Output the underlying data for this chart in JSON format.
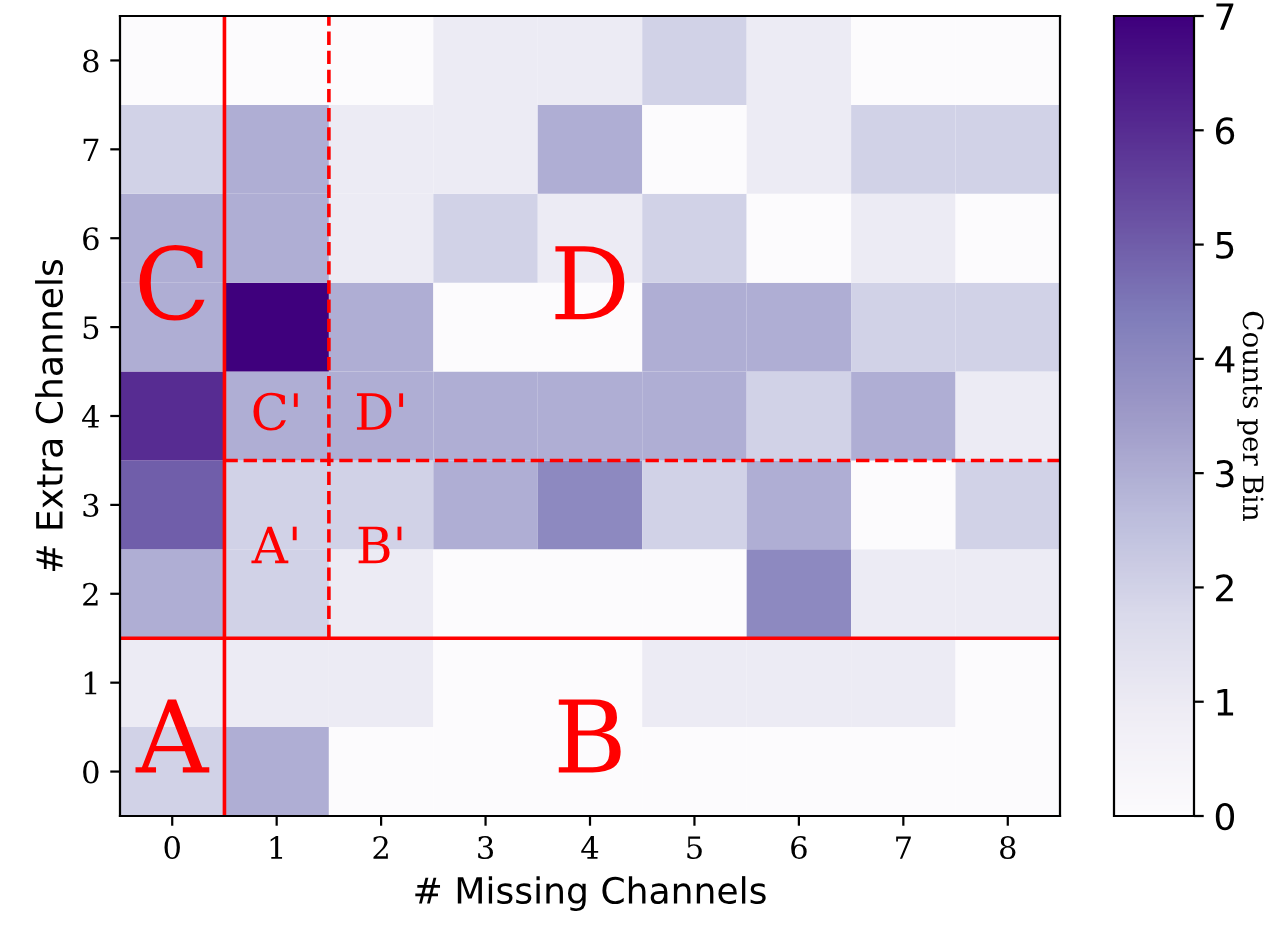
{
  "chart_data": {
    "type": "heatmap",
    "xlabel": "# Missing Channels",
    "ylabel": "# Extra Channels",
    "clabel": "Counts per Bin",
    "categories": [
      "0",
      "1",
      "2",
      "3",
      "4",
      "5",
      "6",
      "7",
      "8"
    ],
    "y_categories": [
      "8",
      "7",
      "6",
      "5",
      "4",
      "3",
      "2",
      "1",
      "0"
    ],
    "cells": [
      [
        0,
        0,
        0,
        1,
        1,
        2,
        1,
        0,
        0
      ],
      [
        2,
        3,
        1,
        1,
        3,
        0,
        1,
        2,
        2
      ],
      [
        3,
        3,
        1,
        2,
        1,
        2,
        0,
        1,
        0
      ],
      [
        3,
        7,
        3,
        0,
        0,
        3,
        3,
        2,
        2
      ],
      [
        6,
        3,
        3,
        3,
        3,
        3,
        2,
        3,
        1
      ],
      [
        5,
        2,
        2,
        3,
        4,
        2,
        3,
        0,
        2
      ],
      [
        3,
        2,
        1,
        0,
        0,
        0,
        4,
        1,
        1
      ],
      [
        1,
        1,
        1,
        0,
        0,
        1,
        1,
        1,
        0
      ],
      [
        2,
        3,
        0,
        0,
        0,
        0,
        0,
        0,
        0
      ]
    ],
    "clim": [
      0,
      7
    ],
    "cticks": [
      0,
      1,
      2,
      3,
      4,
      5,
      6,
      7
    ],
    "annotations": [
      "A",
      "B",
      "C",
      "D",
      "C'",
      "D'",
      "A'",
      "B'"
    ]
  }
}
